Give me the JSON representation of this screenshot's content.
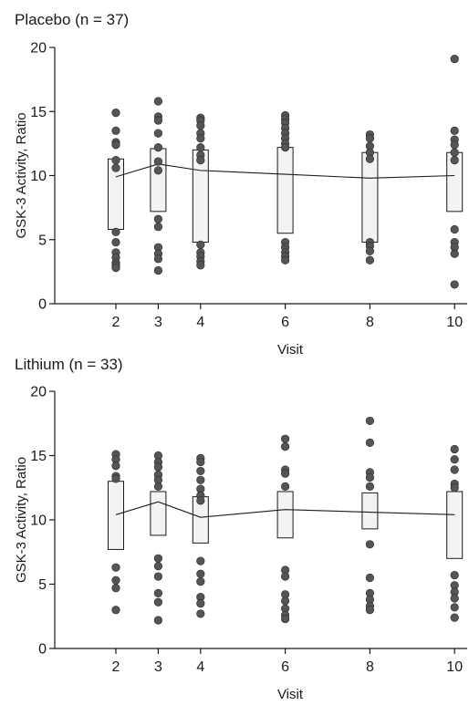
{
  "chart_data": [
    {
      "type": "scatter",
      "title": "Placebo (n = 37)",
      "xlabel": "Visit",
      "ylabel": "GSK-3 Activity, Ratio",
      "x_ticks": [
        2,
        3,
        4,
        6,
        8,
        10
      ],
      "y_ticks": [
        0,
        5,
        10,
        15,
        20
      ],
      "xlim": [
        1,
        10.3
      ],
      "ylim": [
        0,
        20
      ],
      "grid": false,
      "visits": [
        {
          "visit": 2,
          "q1": 5.8,
          "q3": 11.3,
          "mean": 9.9,
          "points": [
            14.9,
            13.5,
            12.6,
            12.4,
            11.2,
            10.6,
            5.6,
            4.8,
            4.0,
            3.6,
            3.2,
            3.0,
            2.8
          ]
        },
        {
          "visit": 3,
          "q1": 7.2,
          "q3": 12.1,
          "mean": 10.9,
          "points": [
            15.8,
            14.6,
            14.3,
            13.3,
            12.2,
            11.1,
            10.4,
            6.6,
            6.0,
            4.4,
            3.9,
            3.5,
            2.6
          ]
        },
        {
          "visit": 4,
          "q1": 4.8,
          "q3": 12.0,
          "mean": 10.4,
          "points": [
            14.5,
            14.3,
            13.9,
            13.3,
            12.9,
            12.2,
            11.6,
            11.2,
            4.6,
            4.0,
            3.7,
            3.3,
            3.0
          ]
        },
        {
          "visit": 6,
          "q1": 5.5,
          "q3": 12.2,
          "mean": 10.1,
          "points": [
            14.7,
            14.4,
            14.1,
            13.7,
            13.3,
            12.9,
            12.5,
            12.2,
            4.8,
            4.4,
            4.0,
            3.7,
            3.4
          ]
        },
        {
          "visit": 8,
          "q1": 4.8,
          "q3": 11.8,
          "mean": 9.8,
          "points": [
            13.2,
            12.9,
            12.3,
            11.8,
            11.3,
            4.8,
            4.5,
            4.1,
            3.4
          ]
        },
        {
          "visit": 10,
          "q1": 7.2,
          "q3": 11.8,
          "mean": 10.0,
          "points": [
            19.1,
            13.5,
            12.8,
            12.4,
            11.8,
            11.2,
            5.8,
            4.8,
            4.4,
            3.9,
            1.5
          ]
        }
      ]
    },
    {
      "type": "scatter",
      "title": "Lithium (n = 33)",
      "xlabel": "Visit",
      "ylabel": "GSK-3 Activity, Ratio",
      "x_ticks": [
        2,
        3,
        4,
        6,
        8,
        10
      ],
      "y_ticks": [
        0,
        5,
        10,
        15,
        20
      ],
      "xlim": [
        1,
        10.3
      ],
      "ylim": [
        0,
        20
      ],
      "grid": false,
      "visits": [
        {
          "visit": 2,
          "q1": 7.7,
          "q3": 13.0,
          "mean": 10.4,
          "points": [
            15.1,
            14.7,
            14.2,
            13.4,
            13.2,
            6.3,
            5.3,
            4.7,
            3.0
          ]
        },
        {
          "visit": 3,
          "q1": 8.8,
          "q3": 12.2,
          "mean": 11.4,
          "points": [
            15.0,
            14.5,
            14.1,
            13.5,
            13.1,
            12.6,
            7.0,
            6.4,
            5.6,
            4.3,
            3.6,
            2.2
          ]
        },
        {
          "visit": 4,
          "q1": 8.2,
          "q3": 11.8,
          "mean": 10.2,
          "points": [
            14.8,
            14.5,
            13.8,
            13.1,
            12.4,
            11.9,
            11.5,
            6.8,
            5.8,
            5.2,
            4.0,
            3.5,
            2.7
          ]
        },
        {
          "visit": 6,
          "q1": 8.6,
          "q3": 12.2,
          "mean": 10.8,
          "points": [
            16.3,
            15.7,
            13.9,
            13.6,
            12.6,
            6.1,
            5.6,
            4.2,
            3.7,
            3.1,
            2.6,
            2.3
          ]
        },
        {
          "visit": 8,
          "q1": 9.3,
          "q3": 12.1,
          "mean": 10.6,
          "points": [
            17.7,
            16.0,
            13.7,
            13.3,
            12.6,
            8.1,
            5.5,
            4.3,
            3.8,
            3.3,
            3.0
          ]
        },
        {
          "visit": 10,
          "q1": 7.0,
          "q3": 12.2,
          "mean": 10.4,
          "points": [
            15.5,
            14.7,
            13.9,
            12.8,
            12.5,
            5.7,
            4.9,
            4.4,
            3.9,
            3.2,
            2.4
          ]
        }
      ]
    }
  ]
}
